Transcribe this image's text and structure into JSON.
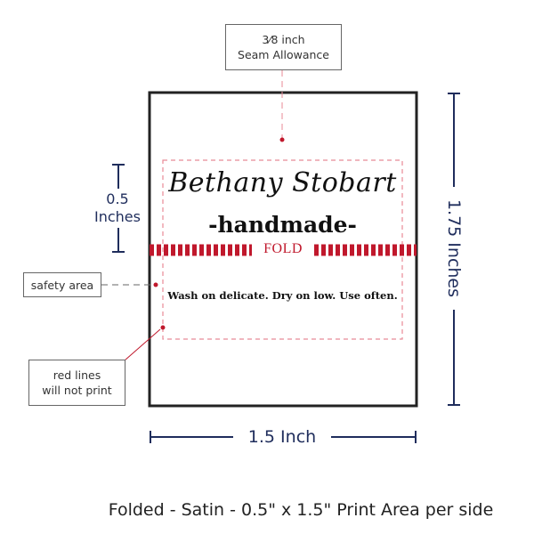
{
  "seam_callout": {
    "line1": "3⁄8 inch",
    "line2": "Seam Allowance"
  },
  "label": {
    "name": "Bethany Stobart",
    "tagline": "-handmade-",
    "fold_text": "FOLD",
    "care_text": "Wash on delicate. Dry on low. Use often."
  },
  "dimensions": {
    "fold_height_value": "0.5",
    "fold_height_unit": "Inches",
    "height": "1.75 Inches",
    "width": "1.5 Inch"
  },
  "safety_callout": "safety area",
  "red_lines_callout": {
    "line1": "red lines",
    "line2": "will not print"
  },
  "footer": "Folded - Satin - 0.5\" x 1.5\" Print Area per side",
  "colors": {
    "navy": "#1f2d5c",
    "red": "#c0182c",
    "safety_dash": "#e88a96",
    "outline": "#222222"
  }
}
